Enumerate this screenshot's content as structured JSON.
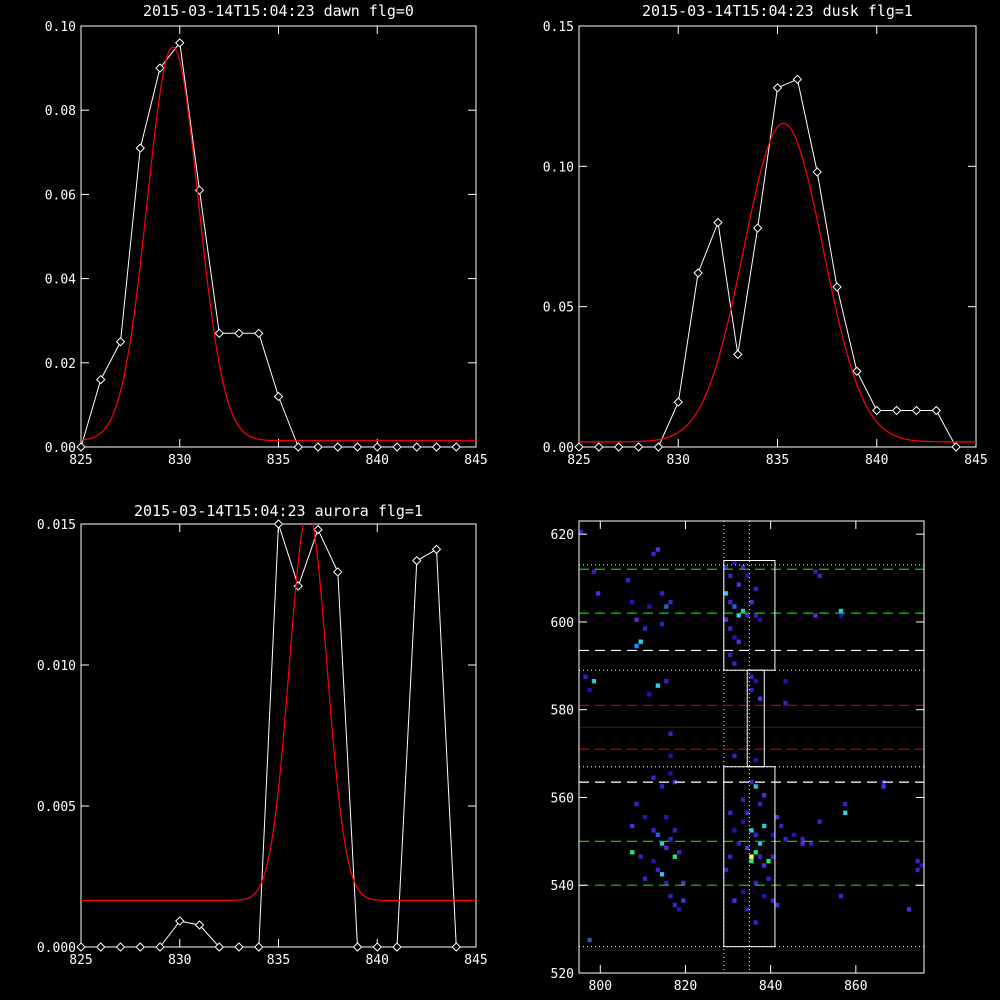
{
  "chart_data": [
    {
      "type": "line",
      "title": "2015-03-14T15:04:23 dawn flg=0",
      "xlim": [
        825,
        845
      ],
      "ylim": [
        0,
        0.1
      ],
      "xticks": [
        825,
        830,
        835,
        840,
        845
      ],
      "xtick_labels": [
        "825",
        "830",
        "835",
        "840",
        "845"
      ],
      "yticks": [
        0,
        0.02,
        0.04,
        0.06,
        0.08,
        0.1
      ],
      "ytick_labels": [
        "0.00",
        "0.02",
        "0.04",
        "0.06",
        "0.08",
        "0.10"
      ],
      "series": [
        {
          "color": "#ffffff",
          "marker": "diamond",
          "x": [
            825,
            826,
            827,
            828,
            829,
            830,
            831,
            832,
            833,
            834,
            835,
            836,
            837,
            838,
            839,
            840,
            841,
            842,
            843,
            844
          ],
          "y": [
            0.0,
            0.016,
            0.025,
            0.071,
            0.09,
            0.096,
            0.061,
            0.027,
            0.027,
            0.027,
            0.012,
            0.0,
            0.0,
            0.0,
            0.0,
            0.0,
            0.0,
            0.0,
            0.0,
            0.0
          ]
        },
        {
          "color": "#ff0000",
          "fit": "gaussian",
          "params": {
            "amplitude": 0.0935,
            "center": 829.65,
            "sigma": 1.3,
            "offset": 0.0015
          }
        }
      ]
    },
    {
      "type": "line",
      "title": "2015-03-14T15:04:23 dusk flg=1",
      "xlim": [
        825,
        845
      ],
      "ylim": [
        0,
        0.15
      ],
      "xticks": [
        825,
        830,
        835,
        840,
        845
      ],
      "xtick_labels": [
        "825",
        "830",
        "835",
        "840",
        "845"
      ],
      "yticks": [
        0,
        0.05,
        0.1,
        0.15
      ],
      "ytick_labels": [
        "0.00",
        "0.05",
        "0.10",
        "0.15"
      ],
      "series": [
        {
          "color": "#ffffff",
          "marker": "diamond",
          "x": [
            825,
            826,
            827,
            828,
            829,
            830,
            831,
            832,
            833,
            834,
            835,
            836,
            837,
            838,
            839,
            840,
            841,
            842,
            843,
            844
          ],
          "y": [
            0.0,
            0.0,
            0.0,
            0.0,
            0.0,
            0.016,
            0.062,
            0.08,
            0.033,
            0.078,
            0.128,
            0.131,
            0.098,
            0.057,
            0.027,
            0.013,
            0.013,
            0.013,
            0.013,
            0.0
          ]
        },
        {
          "color": "#ff0000",
          "fit": "gaussian",
          "params": {
            "amplitude": 0.1135,
            "center": 835.3,
            "sigma": 2.0,
            "offset": 0.0018
          }
        }
      ]
    },
    {
      "type": "line",
      "title": "2015-03-14T15:04:23 aurora flg=1",
      "xlim": [
        825,
        845
      ],
      "ylim": [
        0,
        0.015
      ],
      "xticks": [
        825,
        830,
        835,
        840,
        845
      ],
      "xtick_labels": [
        "825",
        "830",
        "835",
        "840",
        "845"
      ],
      "yticks": [
        0,
        0.005,
        0.01,
        0.015
      ],
      "ytick_labels": [
        "0.000",
        "0.005",
        "0.010",
        "0.015"
      ],
      "series": [
        {
          "color": "#ffffff",
          "marker": "diamond",
          "x": [
            825,
            826,
            827,
            828,
            829,
            830,
            831,
            832,
            833,
            834,
            835,
            836,
            837,
            838,
            839,
            840,
            841,
            842,
            843,
            844
          ],
          "y": [
            0.0,
            0.0,
            0.0,
            0.0,
            0.0,
            0.00092,
            0.00078,
            0.0,
            0.0,
            0.0,
            0.015,
            0.0128,
            0.0148,
            0.0133,
            0.0,
            0.0,
            0.0,
            0.0137,
            0.0141,
            0.0
          ]
        },
        {
          "color": "#ff0000",
          "fit": "gaussian",
          "params": {
            "amplitude": 0.0138,
            "center": 836.5,
            "sigma": 0.95,
            "offset": 0.00165
          }
        }
      ]
    },
    {
      "type": "heatmap",
      "xlim": [
        795,
        876
      ],
      "ylim": [
        520,
        623
      ],
      "xticks": [
        800,
        820,
        840,
        860
      ],
      "xtick_labels": [
        "800",
        "820",
        "840",
        "860"
      ],
      "yticks": [
        520,
        540,
        560,
        580,
        600,
        620
      ],
      "ytick_labels": [
        "520",
        "540",
        "560",
        "580",
        "600",
        "620"
      ],
      "dotted_vlines": [
        829,
        835
      ],
      "dotted_hlines": [
        526,
        567,
        589,
        613
      ],
      "dotted_hlines_color": "#ffffff",
      "dashed_hlines": [
        {
          "y": 540,
          "color": "#00cc00"
        },
        {
          "y": 550,
          "color": "#00cc00"
        },
        {
          "y": 563.5,
          "color": "#ffffff"
        },
        {
          "y": 571,
          "color": "#cc0000"
        },
        {
          "y": 581,
          "color": "#cc0000"
        },
        {
          "y": 593.5,
          "color": "#ffffff"
        },
        {
          "y": 602,
          "color": "#00cc00"
        },
        {
          "y": 612,
          "color": "#00cc00"
        }
      ],
      "faint_hline": {
        "y": 576,
        "color": "#551111"
      },
      "boxes": [
        {
          "x0": 829,
          "x1": 841,
          "y0": 526,
          "y1": 567
        },
        {
          "x0": 834.5,
          "x1": 838.5,
          "y0": 567,
          "y1": 589
        },
        {
          "x0": 829,
          "x1": 841,
          "y0": 589,
          "y1": 614
        }
      ],
      "pixels": [
        [
          795,
          620,
          "#3322cc"
        ],
        [
          797,
          527,
          "#3355aa"
        ],
        [
          798,
          611,
          "#3a1ec0"
        ],
        [
          799,
          606,
          "#5a2ad8"
        ],
        [
          796,
          587,
          "#3a1ec0"
        ],
        [
          798,
          586,
          "#38c0e0"
        ],
        [
          797,
          584,
          "#2a10b0"
        ],
        [
          806,
          609,
          "#4020c8"
        ],
        [
          807,
          604,
          "#2a10b0"
        ],
        [
          808,
          600,
          "#5a2ad8"
        ],
        [
          809,
          595,
          "#30d0e8"
        ],
        [
          808,
          594,
          "#1890ff"
        ],
        [
          810,
          598,
          "#4020c8"
        ],
        [
          811,
          603,
          "#2a10b0"
        ],
        [
          812,
          615,
          "#4020c8"
        ],
        [
          813,
          616,
          "#5a2ad8"
        ],
        [
          814,
          606,
          "#3a1ec0"
        ],
        [
          815,
          603,
          "#2a60d0"
        ],
        [
          816,
          604,
          "#4020c8"
        ],
        [
          814,
          599,
          "#3a1ec0"
        ],
        [
          811,
          583,
          "#2a10b0"
        ],
        [
          813,
          585,
          "#30d0e8"
        ],
        [
          815,
          586,
          "#4020c8"
        ],
        [
          816,
          574,
          "#3a1ec0"
        ],
        [
          816,
          569,
          "#2a10b0"
        ],
        [
          812,
          564,
          "#4020c8"
        ],
        [
          814,
          562,
          "#3a1ec0"
        ],
        [
          816,
          565,
          "#2a10b0"
        ],
        [
          817,
          563,
          "#5a2ad8"
        ],
        [
          808,
          558,
          "#3a1ec0"
        ],
        [
          810,
          555,
          "#2a10b0"
        ],
        [
          812,
          552,
          "#4020c8"
        ],
        [
          813,
          551,
          "#2a60d0"
        ],
        [
          814,
          549,
          "#30d0e8"
        ],
        [
          815,
          548,
          "#5a2ad8"
        ],
        [
          816,
          550,
          "#4020c8"
        ],
        [
          817,
          552,
          "#3a1ec0"
        ],
        [
          812,
          545,
          "#2a10b0"
        ],
        [
          813,
          543,
          "#4020c8"
        ],
        [
          814,
          542,
          "#38c0e0"
        ],
        [
          815,
          540,
          "#3a1ec0"
        ],
        [
          817,
          546,
          "#20e870"
        ],
        [
          818,
          547,
          "#4020c8"
        ],
        [
          819,
          540,
          "#5a2ad8"
        ],
        [
          816,
          537,
          "#3a1ec0"
        ],
        [
          817,
          535,
          "#4020c8"
        ],
        [
          818,
          534,
          "#2a10b0"
        ],
        [
          819,
          536,
          "#5a2ad8"
        ],
        [
          815,
          555,
          "#2a10b0"
        ],
        [
          807,
          547,
          "#20e870"
        ],
        [
          809,
          546,
          "#3a1ec0"
        ],
        [
          810,
          541,
          "#4020c8"
        ],
        [
          807,
          553,
          "#5a2ad8"
        ],
        [
          829,
          612,
          "#3a1ec0"
        ],
        [
          830,
          610,
          "#4020c8"
        ],
        [
          831,
          613,
          "#2a10b0"
        ],
        [
          832,
          608,
          "#5a2ad8"
        ],
        [
          829,
          606,
          "#38c0e0"
        ],
        [
          830,
          604,
          "#4020c8"
        ],
        [
          831,
          603,
          "#2a60d0"
        ],
        [
          832,
          601,
          "#30d0e8"
        ],
        [
          833,
          602,
          "#38c0e0"
        ],
        [
          834,
          601,
          "#4020c8"
        ],
        [
          835,
          604,
          "#5a2ad8"
        ],
        [
          836,
          601,
          "#3a1ec0"
        ],
        [
          830,
          598,
          "#4020c8"
        ],
        [
          831,
          596,
          "#2a10b0"
        ],
        [
          832,
          595,
          "#5a2ad8"
        ],
        [
          830,
          592,
          "#3a1ec0"
        ],
        [
          831,
          590,
          "#4020c8"
        ],
        [
          836,
          607,
          "#3a1ec0"
        ],
        [
          837,
          600,
          "#2a10b0"
        ],
        [
          833,
          612,
          "#4020c8"
        ],
        [
          834,
          610,
          "#2a10b0"
        ],
        [
          829,
          600,
          "#5a2ad8"
        ],
        [
          835,
          587,
          "#4020c8"
        ],
        [
          836,
          586,
          "#2a10b0"
        ],
        [
          835,
          584,
          "#3a1ec0"
        ],
        [
          837,
          582,
          "#5a2ad8"
        ],
        [
          843,
          586,
          "#2a10b0"
        ],
        [
          843,
          581,
          "#4020c8"
        ],
        [
          831,
          569,
          "#3a1ec0"
        ],
        [
          836,
          568,
          "#2a10b0"
        ],
        [
          835,
          563,
          "#4020c8"
        ],
        [
          836,
          562,
          "#38c0e0"
        ],
        [
          838,
          560,
          "#5a2ad8"
        ],
        [
          837,
          558,
          "#3a1ec0"
        ],
        [
          834,
          556,
          "#4020c8"
        ],
        [
          833,
          554,
          "#2a10b0"
        ],
        [
          835,
          552,
          "#30d0e8"
        ],
        [
          836,
          551,
          "#4020c8"
        ],
        [
          837,
          549,
          "#38c0e0"
        ],
        [
          834,
          548,
          "#5a2ad8"
        ],
        [
          835,
          546,
          "#ffff40"
        ],
        [
          836,
          547,
          "#20e870"
        ],
        [
          835,
          545,
          "#30e090"
        ],
        [
          837,
          546,
          "#4020c8"
        ],
        [
          838,
          544,
          "#5a2ad8"
        ],
        [
          839,
          541,
          "#3a1ec0"
        ],
        [
          836,
          540,
          "#4020c8"
        ],
        [
          833,
          538,
          "#2a10b0"
        ],
        [
          831,
          536,
          "#5a2ad8"
        ],
        [
          834,
          534,
          "#3a1ec0"
        ],
        [
          836,
          531,
          "#4020c8"
        ],
        [
          838,
          537,
          "#2a10b0"
        ],
        [
          839,
          545,
          "#20e870"
        ],
        [
          840,
          546,
          "#4020c8"
        ],
        [
          832,
          549,
          "#3a1ec0"
        ],
        [
          831,
          552,
          "#2a10b0"
        ],
        [
          830,
          556,
          "#4020c8"
        ],
        [
          841,
          555,
          "#5a2ad8"
        ],
        [
          842,
          553,
          "#3a1ec0"
        ],
        [
          840,
          551,
          "#2a10b0"
        ],
        [
          840,
          536,
          "#4020c8"
        ],
        [
          841,
          535,
          "#5a2ad8"
        ],
        [
          829,
          543,
          "#3a1ec0"
        ],
        [
          830,
          546,
          "#4020c8"
        ],
        [
          838,
          553,
          "#38c0e0"
        ],
        [
          833,
          559,
          "#3a1ec0"
        ],
        [
          843,
          550,
          "#4020c8"
        ],
        [
          845,
          551,
          "#2a10b0"
        ],
        [
          847,
          549,
          "#5a2ad8"
        ],
        [
          849,
          549,
          "#3a1ec0"
        ],
        [
          851,
          554,
          "#4020c8"
        ],
        [
          847,
          550,
          "#3a1ec0"
        ],
        [
          850,
          611,
          "#3a1ec0"
        ],
        [
          851,
          610,
          "#4020c8"
        ],
        [
          850,
          601,
          "#5a2ad8"
        ],
        [
          856,
          601,
          "#2a10b0"
        ],
        [
          856,
          602,
          "#38c0e0"
        ],
        [
          857,
          558,
          "#3a1ec0"
        ],
        [
          857,
          556,
          "#30d0e8"
        ],
        [
          856,
          537,
          "#4020c8"
        ],
        [
          866,
          562,
          "#5a2ad8"
        ],
        [
          874,
          545,
          "#4020c8"
        ],
        [
          875,
          544,
          "#2a10b0"
        ],
        [
          874,
          543,
          "#3a1ec0"
        ],
        [
          872,
          534,
          "#5a2ad8"
        ],
        [
          866,
          563,
          "#3a1ec0"
        ]
      ]
    }
  ]
}
